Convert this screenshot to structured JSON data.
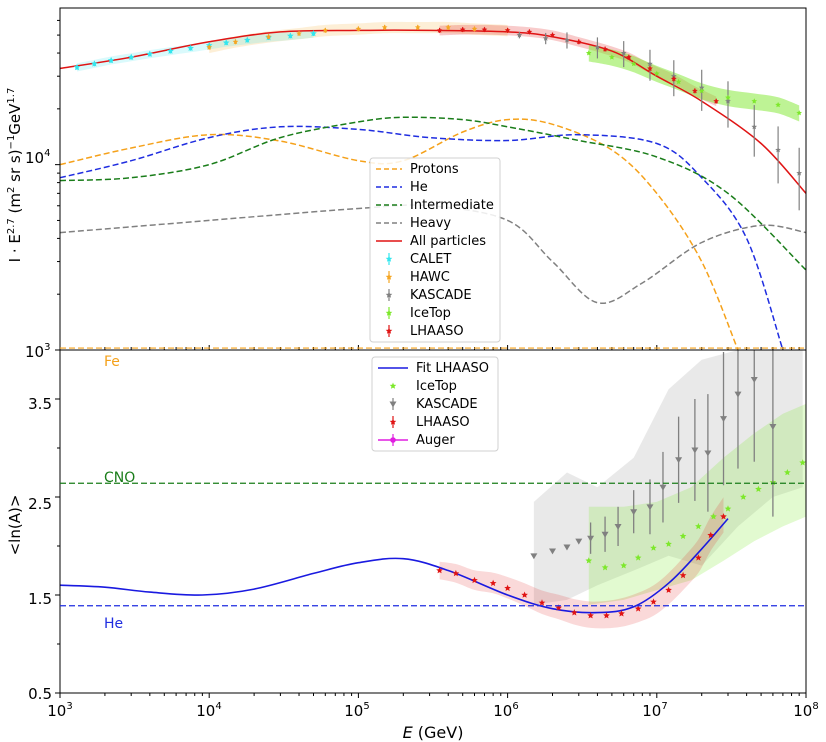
{
  "chart_data": [
    {
      "type": "line",
      "panel": "top",
      "title": "",
      "ylabel_html": "I · E^2.7 (m² sr s)⁻¹GeV^1.7",
      "ylabel_parts": {
        "a": "I · E",
        "b": "2.7",
        "c": " (m",
        "d": "2",
        "e": " sr s)",
        "f": "−1",
        "g": "GeV",
        "h": "1.7"
      },
      "xscale": "log",
      "yscale": "log",
      "xlim": [
        1000,
        100000000
      ],
      "ylim": [
        1000,
        70000
      ],
      "ytick_labels": {
        "t3": "10",
        "t3e": "3",
        "t4": "10",
        "t4e": "4"
      },
      "legend_position": "center",
      "legend": [
        "Protons",
        "He",
        "Intermediate",
        "Heavy",
        "All particles",
        "CALET",
        "HAWC",
        "KASCADE",
        "IceTop",
        "LHAASO"
      ],
      "colors": {
        "Protons": "#f5a11a",
        "He": "#1f2de0",
        "Intermediate": "#1a7d1a",
        "Heavy": "#808080",
        "All particles": "#e01414",
        "CALET": "#33e6ee",
        "HAWC": "#f5a623",
        "KASCADE": "#808080",
        "IceTop": "#7de82b",
        "LHAASO": "#e01414"
      },
      "series": [
        {
          "name": "Protons",
          "x": [
            1000,
            3000,
            10000,
            30000,
            100000,
            200000,
            500000,
            1000000,
            2000000,
            5000000,
            10000000,
            20000000,
            35000000
          ],
          "y": [
            10000,
            12300,
            14500,
            13400,
            10500,
            10500,
            15000,
            17500,
            16500,
            12000,
            7000,
            3000,
            1000
          ]
        },
        {
          "name": "He",
          "x": [
            1000,
            3000,
            10000,
            30000,
            100000,
            300000,
            1000000,
            3000000,
            10000000,
            20000000,
            40000000,
            70000000
          ],
          "y": [
            8500,
            10500,
            14000,
            16000,
            15500,
            14000,
            13500,
            14500,
            13000,
            8500,
            4000,
            1000
          ]
        },
        {
          "name": "Intermediate",
          "x": [
            1000,
            3000,
            10000,
            30000,
            100000,
            200000,
            500000,
            1000000,
            3000000,
            10000000,
            30000000,
            100000000
          ],
          "y": [
            8200,
            8500,
            10000,
            14000,
            17000,
            18000,
            17500,
            16000,
            13500,
            11000,
            7000,
            2700
          ]
        },
        {
          "name": "Heavy",
          "x": [
            1000,
            10000,
            100000,
            300000,
            1000000,
            2000000,
            4000000,
            8000000,
            20000000,
            50000000,
            100000000
          ],
          "y": [
            4300,
            5000,
            5800,
            6000,
            5000,
            3000,
            1800,
            2300,
            3800,
            4700,
            4300
          ]
        },
        {
          "name": "All particles",
          "x": [
            1000,
            3000,
            10000,
            30000,
            100000,
            300000,
            1000000,
            2000000,
            5000000,
            10000000,
            20000000,
            50000000,
            100000000
          ],
          "y": [
            33000,
            38000,
            46000,
            52000,
            53000,
            53000,
            52000,
            49000,
            41000,
            30000,
            22000,
            13000,
            7000
          ]
        },
        {
          "name": "CALET",
          "x": [
            1300,
            1700,
            2200,
            3000,
            4000,
            5500,
            7500,
            10000,
            13000,
            18000,
            25000,
            35000,
            50000
          ],
          "y": [
            33500,
            35000,
            36500,
            38000,
            39500,
            41000,
            42500,
            44000,
            45500,
            47000,
            48500,
            49500,
            51000
          ]
        },
        {
          "name": "HAWC",
          "x": [
            10000,
            15000,
            25000,
            40000,
            60000,
            100000,
            150000,
            250000,
            400000,
            600000,
            1000000
          ],
          "y": [
            43000,
            46000,
            49000,
            51000,
            53000,
            54000,
            55000,
            55000,
            55000,
            54000,
            53000
          ]
        },
        {
          "name": "KASCADE",
          "x": [
            1200000,
            1800000,
            2500000,
            4000000,
            6000000,
            9000000,
            13000000,
            20000000,
            30000000,
            45000000,
            65000000,
            90000000
          ],
          "y": [
            50000,
            48000,
            47000,
            43000,
            40000,
            35000,
            30000,
            26000,
            22000,
            16000,
            12000,
            9000
          ]
        },
        {
          "name": "IceTop",
          "x": [
            3500000,
            5000000,
            7000000,
            10000000,
            14000000,
            20000000,
            30000000,
            45000000,
            65000000,
            90000000
          ],
          "y": [
            40000,
            38000,
            35000,
            31000,
            28000,
            25000,
            23000,
            22000,
            21000,
            19000
          ]
        },
        {
          "name": "LHAASO",
          "x": [
            350000,
            500000,
            700000,
            1000000,
            1400000,
            2000000,
            3000000,
            4500000,
            6500000,
            9000000,
            13000000,
            18000000,
            25000000
          ],
          "y": [
            53000,
            53500,
            53500,
            53000,
            52000,
            50000,
            46000,
            42000,
            38000,
            33000,
            29000,
            25000,
            22000
          ]
        }
      ]
    },
    {
      "type": "line",
      "panel": "bottom",
      "xlabel_italic": "E",
      "xlabel_rest": " (GeV)",
      "ylabel": "<ln(A)>",
      "xscale": "log",
      "xlim": [
        1000,
        100000000
      ],
      "ylim": [
        0.5,
        4.0
      ],
      "xtick_labels": [
        {
          "base": "10",
          "exp": "3"
        },
        {
          "base": "10",
          "exp": "4"
        },
        {
          "base": "10",
          "exp": "5"
        },
        {
          "base": "10",
          "exp": "6"
        },
        {
          "base": "10",
          "exp": "7"
        },
        {
          "base": "10",
          "exp": "8"
        }
      ],
      "ytick_labels": [
        "0.5",
        "1.5",
        "2.5",
        "3.5"
      ],
      "reference_lines": [
        {
          "label": "Fe",
          "value": 4.02,
          "color": "#f5a11a"
        },
        {
          "label": "CNO",
          "value": 2.64,
          "color": "#1a7d1a"
        },
        {
          "label": "He",
          "value": 1.39,
          "color": "#1f2de0"
        }
      ],
      "legend_position": "upper center",
      "legend": [
        "Fit LHAASO",
        "IceTop",
        "KASCADE",
        "LHAASO",
        "Auger"
      ],
      "colors": {
        "Fit LHAASO": "#1a1ae0",
        "IceTop": "#7de82b",
        "KASCADE": "#808080",
        "LHAASO": "#e01414",
        "Auger": "#e01ee0"
      },
      "series": [
        {
          "name": "Fit LHAASO",
          "x": [
            1000,
            2000,
            4000,
            9000,
            20000,
            50000,
            100000,
            200000,
            400000,
            1000000,
            2000000,
            4000000,
            7000000,
            12000000,
            20000000,
            30000000
          ],
          "y": [
            1.6,
            1.58,
            1.53,
            1.5,
            1.56,
            1.72,
            1.83,
            1.87,
            1.75,
            1.5,
            1.36,
            1.32,
            1.38,
            1.62,
            1.97,
            2.28
          ]
        },
        {
          "name": "IceTop",
          "x": [
            3500000,
            4500000,
            6000000,
            7500000,
            9500000,
            12000000,
            15000000,
            19000000,
            24000000,
            30000000,
            38000000,
            48000000,
            60000000,
            75000000,
            95000000
          ],
          "y": [
            1.85,
            1.78,
            1.8,
            1.88,
            1.98,
            2.02,
            2.1,
            2.2,
            2.3,
            2.38,
            2.5,
            2.58,
            2.65,
            2.75,
            2.85
          ]
        },
        {
          "name": "KASCADE",
          "x": [
            1500000,
            2000000,
            2500000,
            3000000,
            3600000,
            4500000,
            5500000,
            7000000,
            9000000,
            11000000,
            14000000,
            18000000,
            22000000,
            28000000,
            35000000,
            45000000,
            60000000
          ],
          "y": [
            1.9,
            1.95,
            1.99,
            2.05,
            2.08,
            2.12,
            2.2,
            2.35,
            2.4,
            2.6,
            2.88,
            2.98,
            2.95,
            3.3,
            3.55,
            3.7,
            3.22
          ]
        },
        {
          "name": "LHAASO",
          "x": [
            350000,
            450000,
            600000,
            800000,
            1000000,
            1300000,
            1700000,
            2200000,
            2800000,
            3600000,
            4600000,
            5800000,
            7500000,
            9500000,
            12000000,
            15000000,
            19000000,
            23000000,
            28000000
          ],
          "y": [
            1.75,
            1.72,
            1.65,
            1.62,
            1.57,
            1.5,
            1.42,
            1.37,
            1.32,
            1.29,
            1.29,
            1.31,
            1.36,
            1.43,
            1.55,
            1.7,
            1.88,
            2.11,
            2.3
          ]
        },
        {
          "name": "Auger",
          "x": [],
          "y": []
        }
      ]
    }
  ]
}
